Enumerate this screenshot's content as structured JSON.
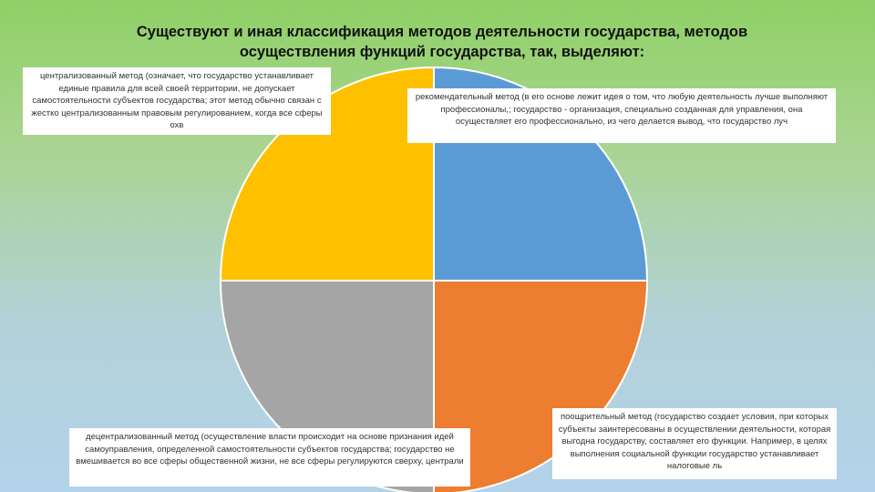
{
  "title": {
    "line1": "Существуют и иная классификация методов деятельности государства, методов",
    "line2": "осуществления функций государства, так, выделяют:"
  },
  "colors": {
    "top_right": "#5b9bd5",
    "bottom_right": "#ed7d31",
    "bottom_left": "#a5a5a5",
    "top_left": "#ffc000"
  },
  "sections": {
    "centralized": "централизованный метод (означает, что государство устанавливает единые правила для всей своей территории, не допускает самостоятельности субъектов государства; этот метод обычно связан с жестко централизованным правовым регулированием, когда все сферы охв",
    "recommendation": "рекомендательный метод (в его основе лежит идея о том, что любую деятельность лучше выполняют профессионалы,; государство - организация, специально созданная для управления, она осуществляет его профессионально, из чего делается вывод, что государство луч",
    "encouraging": "поощрительный метод (государство создает условия, при которых субъекты заинтересованы в осуществлении деятельности, которая выгодна государству, составляет его функции. Например, в целях выполнения социальной функции государство устанавливает налоговые ль",
    "decentralized": "децентрализованный метод (осуществление власти происходит на основе признания идей самоуправления, определенной самостоятельности субъектов государства; государство не вмешивается во все сферы общественной жизни, не все сферы регулируются сверху, централи"
  }
}
